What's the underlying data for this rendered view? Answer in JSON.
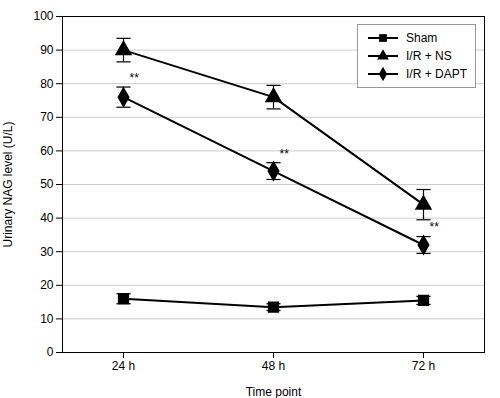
{
  "chart_data": {
    "type": "line",
    "xlabel": "Time point",
    "ylabel": "Urinary NAG level (U/L)",
    "categories": [
      "24 h",
      "48 h",
      "72 h"
    ],
    "series": [
      {
        "name": "Sham",
        "color": "#000000",
        "marker": "square",
        "line_style": "solid",
        "values": [
          16,
          13.5,
          15.5
        ],
        "yerr": [
          1.5,
          1.0,
          1.2
        ]
      },
      {
        "name": "I/R + NS",
        "color": "#000000",
        "marker": "triangle",
        "line_style": "solid",
        "values": [
          90,
          76,
          44
        ],
        "yerr": [
          3.5,
          3.5,
          4.5
        ]
      },
      {
        "name": "I/R + DAPT",
        "color": "#000000",
        "marker": "diamond",
        "line_style": "solid",
        "values": [
          76,
          54,
          32
        ],
        "yerr": [
          3.0,
          2.5,
          2.5
        ],
        "annotations": [
          {
            "category": "24 h",
            "text": "**"
          },
          {
            "category": "48 h",
            "text": "**"
          },
          {
            "category": "72 h",
            "text": "**"
          }
        ]
      }
    ],
    "ylim": [
      0,
      100
    ],
    "yticks": [
      0,
      10,
      20,
      30,
      40,
      50,
      60,
      70,
      80,
      90,
      100
    ],
    "grid": true,
    "legend": "upper right"
  }
}
